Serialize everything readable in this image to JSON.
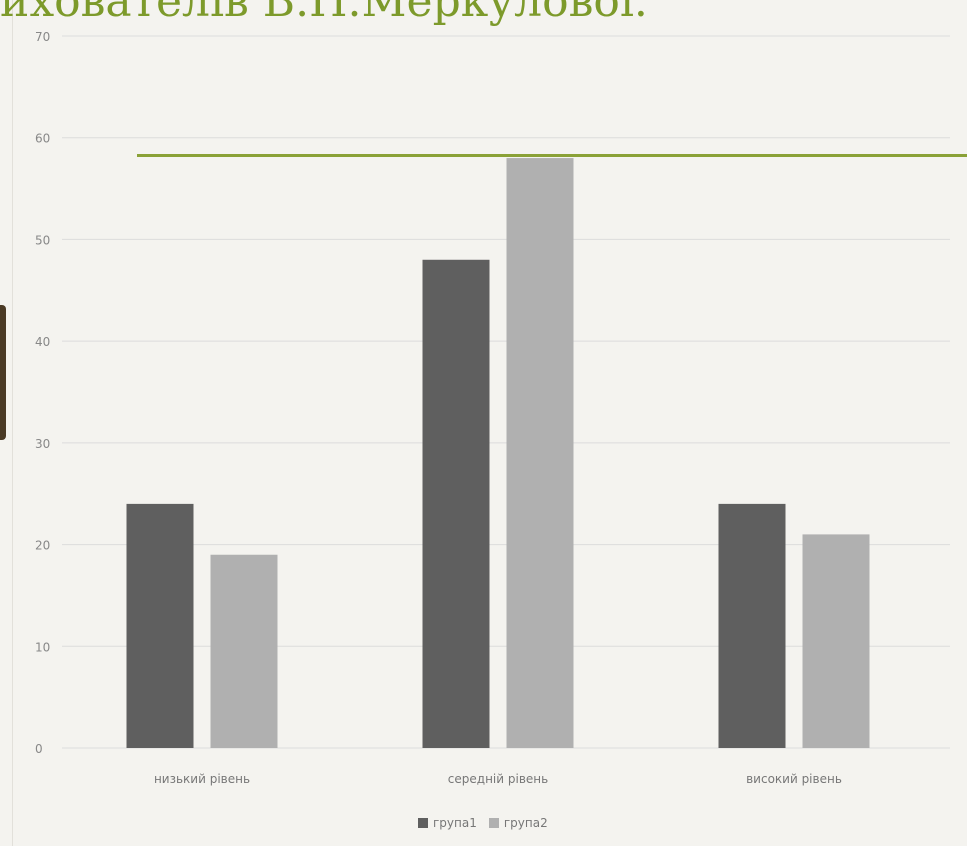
{
  "slide": {
    "title": "ихователів В.Н.Меркулової."
  },
  "colors": {
    "series1": "#5f5f5f",
    "series2": "#b0b0b0",
    "title": "#7d9a2b",
    "grid": "#dcdcdc"
  },
  "chart_data": {
    "type": "bar",
    "title": "",
    "xlabel": "",
    "ylabel": "",
    "categories": [
      "низький рівень",
      "середній рівень",
      "високий рівень"
    ],
    "series": [
      {
        "name": "група1",
        "values": [
          24,
          48,
          24
        ]
      },
      {
        "name": "група2",
        "values": [
          19,
          58,
          21
        ]
      }
    ],
    "ylim": [
      0,
      70
    ],
    "yticks": [
      "0",
      "10",
      "20",
      "30",
      "40",
      "50",
      "60",
      "70"
    ],
    "grid": true,
    "legend": "bottom-center"
  }
}
